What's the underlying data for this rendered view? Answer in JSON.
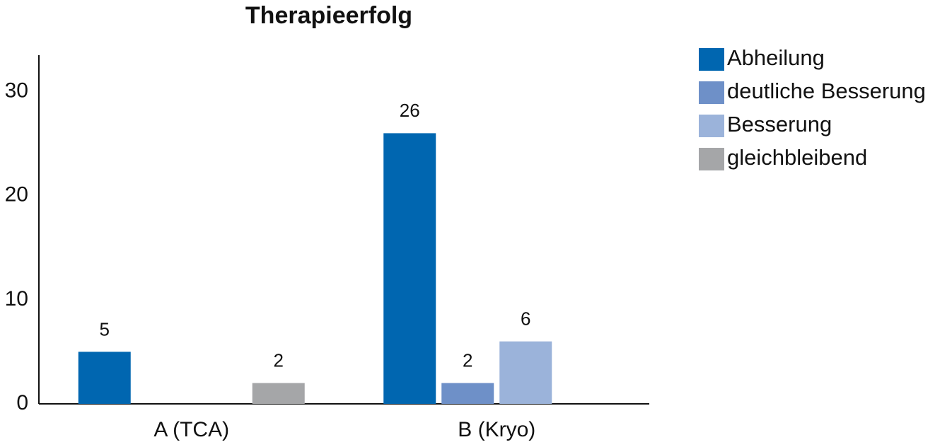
{
  "chart_data": {
    "type": "bar",
    "title": "Therapieerfolg",
    "categories": [
      "A (TCA)",
      "B (Kryo)"
    ],
    "series": [
      {
        "name": "Abheilung",
        "color": "#0066b0",
        "values": [
          5,
          26
        ]
      },
      {
        "name": "deutliche Besserung",
        "color": "#6e90c8",
        "values": [
          null,
          2
        ]
      },
      {
        "name": "Besserung",
        "color": "#9bb3da",
        "values": [
          null,
          6
        ]
      },
      {
        "name": "gleichbleibend",
        "color": "#a5a6a8",
        "values": [
          2,
          null
        ]
      }
    ],
    "ylim": [
      0,
      33.5
    ],
    "yticks": [
      0,
      10,
      20,
      30
    ],
    "grid": false,
    "legend": "right"
  }
}
